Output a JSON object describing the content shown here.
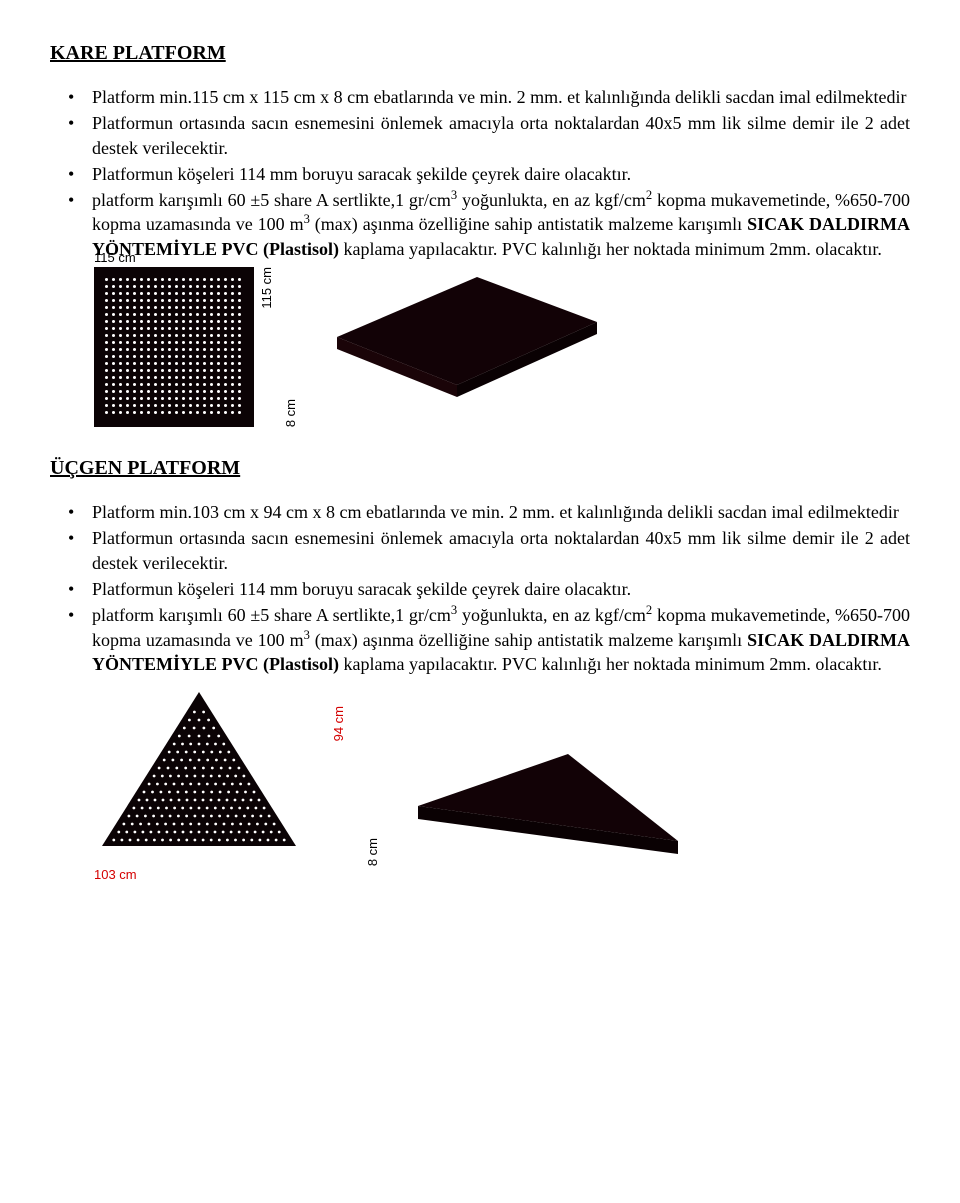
{
  "section1": {
    "title": "KARE PLATFORM",
    "bullets": [
      {
        "html": "Platform min.115 cm x 115 cm x 8 cm ebatlarında  ve min. 2 mm. et kalınlığında delikli sacdan imal edilmektedir"
      },
      {
        "html": "Platformun ortasında sacın esnemesini önlemek amacıyla orta noktalardan 40x5 mm lik silme demir ile 2 adet destek verilecektir."
      },
      {
        "html": "Platformun köşeleri 114 mm boruyu saracak şekilde çeyrek daire olacaktır."
      },
      {
        "html": "platform karışımlı 60  ±5 share  A sertlikte,1 gr/cm<span class=\"sup\">3</span> yoğunlukta, en az kgf/cm<span class=\"sup\">2</span> kopma mukavemetinde, %650-700 kopma uzamasında ve 100 m<span class=\"sup\">3</span> (max) aşınma özelliğine sahip antistatik malzeme karışımlı <span class=\"bold\">SICAK DALDIRMA YÖNTEMİYLE PVC (Plastisol)</span> kaplama yapılacaktır. PVC kalınlığı her noktada minimum 2mm. olacaktır."
      }
    ],
    "figure": {
      "top_label": "115 cm",
      "side_label": "115 cm",
      "depth_label": "8 cm",
      "panel_color": "#0b0305",
      "slab_color": "#120206"
    }
  },
  "section2": {
    "title": "ÜÇGEN PLATFORM",
    "bullets": [
      {
        "html": "Platform min.103 cm x 94 cm x 8 cm ebatlarında  ve min. 2 mm. et kalınlığında delikli sacdan imal edilmektedir"
      },
      {
        "html": "Platformun ortasında sacın esnemesini önlemek amacıyla orta noktalardan 40x5 mm lik silme demir ile 2 adet destek verilecektir."
      },
      {
        "html": "Platformun köşeleri 114 mm boruyu saracak şekilde çeyrek daire olacaktır."
      },
      {
        "html": "platform karışımlı 60  ±5 share  A sertlikte,1 gr/cm<span class=\"sup\">3</span> yoğunlukta, en az kgf/cm<span class=\"sup\">2</span> kopma mukavemetinde, %650-700 kopma uzamasında ve 100 m<span class=\"sup\">3</span> (max) aşınma özelliğine sahip antistatik malzeme karışımlı <span class=\"bold\">SICAK DALDIRMA YÖNTEMİYLE PVC (Plastisol)</span> kaplama yapılacaktır. PVC kalınlığı her noktada minimum 2mm. olacaktır."
      }
    ],
    "figure": {
      "height_label": "94 cm",
      "base_label": "103 cm",
      "depth_label": "8 cm",
      "panel_color": "#0b0305",
      "slab_color": "#120206",
      "dim_color": "#d40000"
    }
  }
}
